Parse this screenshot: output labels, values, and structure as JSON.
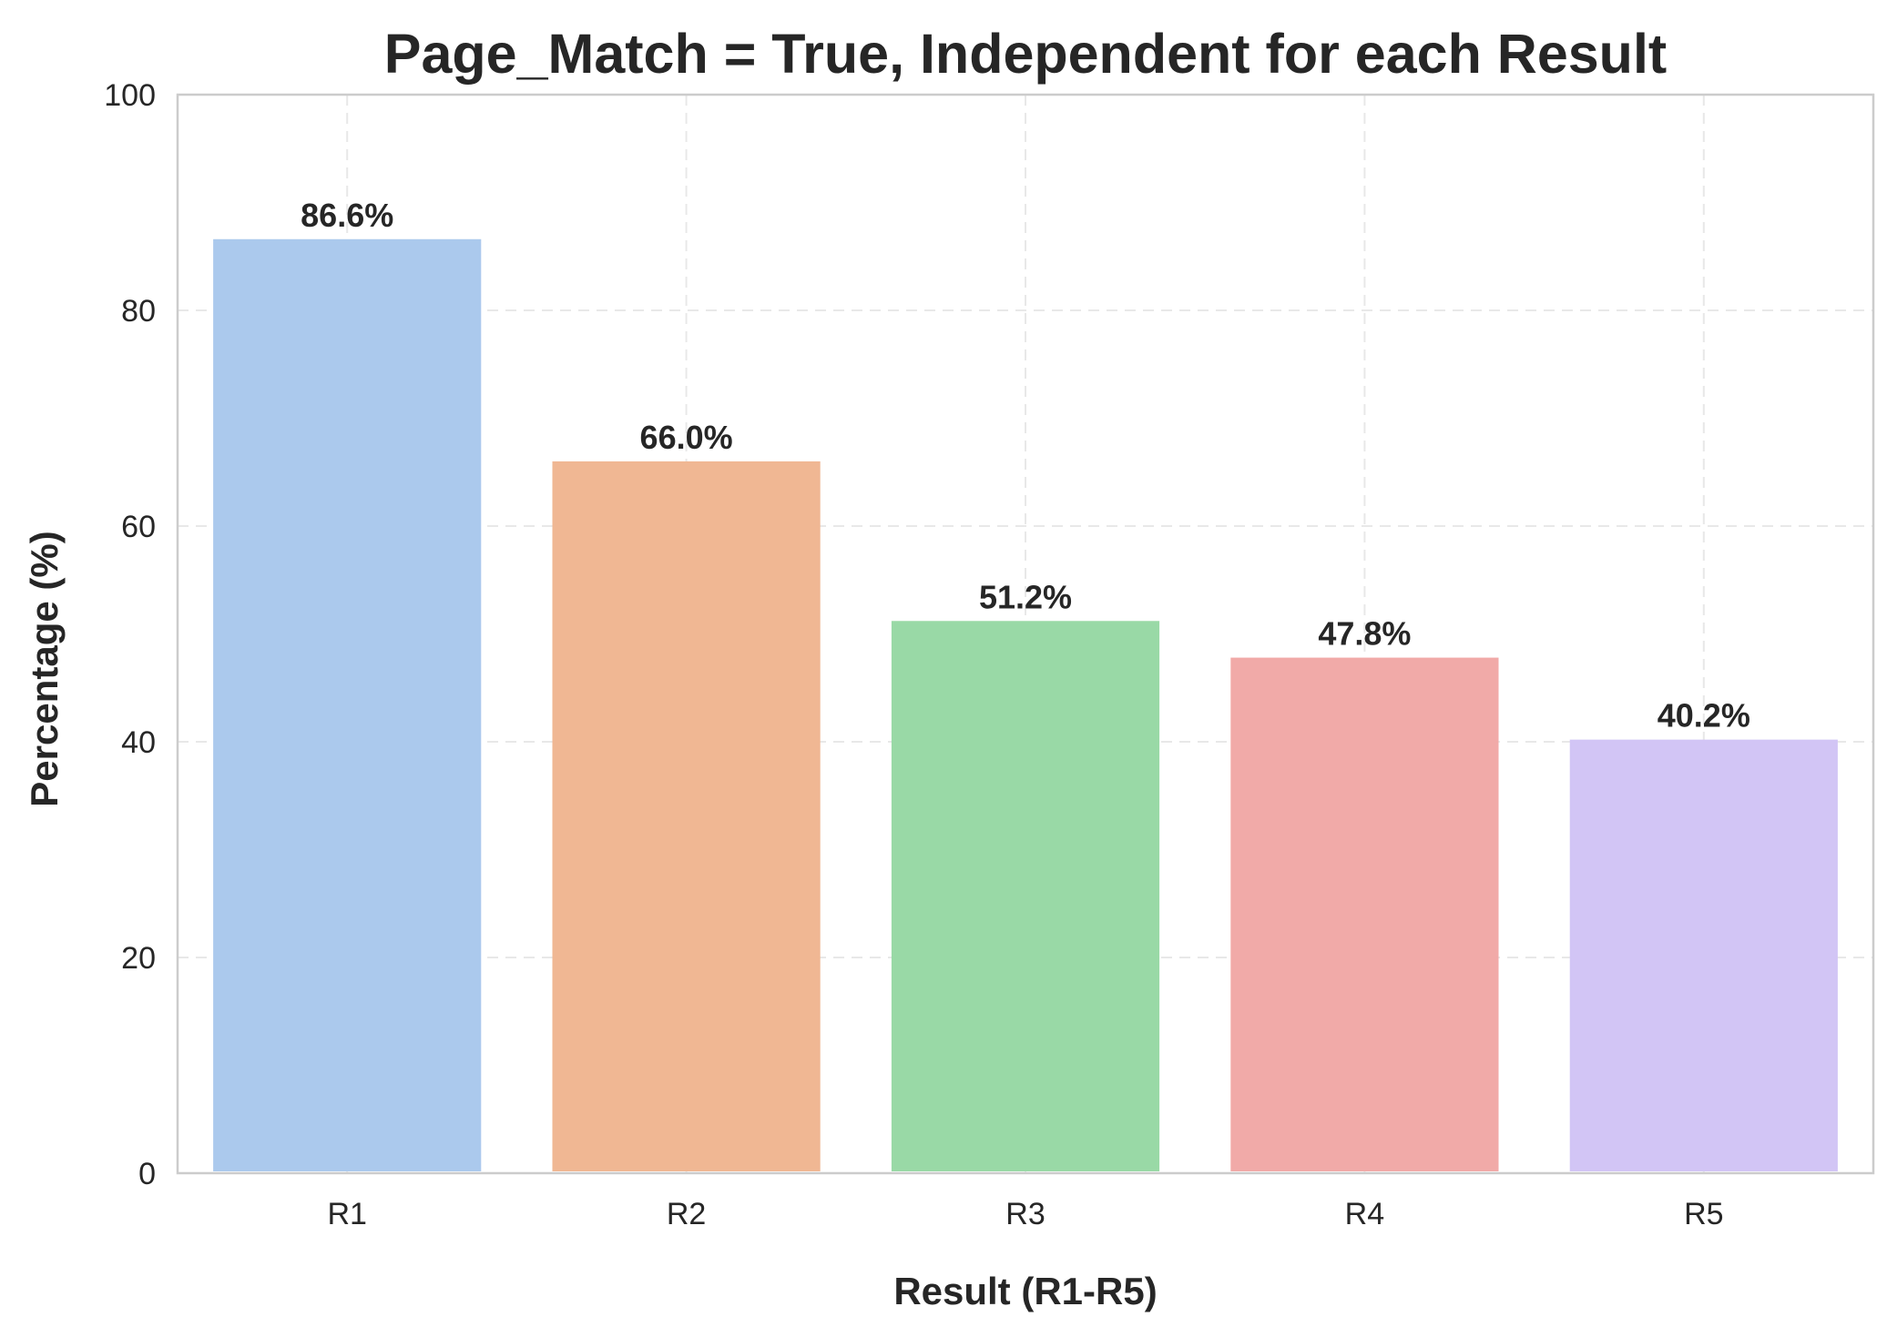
{
  "chart_data": {
    "type": "bar",
    "title": "Page_Match = True, Independent for each Result",
    "xlabel": "Result (R1-R5)",
    "ylabel": "Percentage (%)",
    "categories": [
      "R1",
      "R2",
      "R3",
      "R4",
      "R5"
    ],
    "values": [
      86.6,
      66.0,
      51.2,
      47.8,
      40.2
    ],
    "data_labels": [
      "86.6%",
      "66.0%",
      "51.2%",
      "47.8%",
      "40.2%"
    ],
    "colors": [
      "#abc9ed",
      "#f0b793",
      "#99d9a6",
      "#f1aaa8",
      "#d2c5f5"
    ],
    "ylim": [
      0,
      100
    ],
    "yticks": [
      0,
      20,
      40,
      60,
      80,
      100
    ],
    "grid": true,
    "legend": "none"
  }
}
